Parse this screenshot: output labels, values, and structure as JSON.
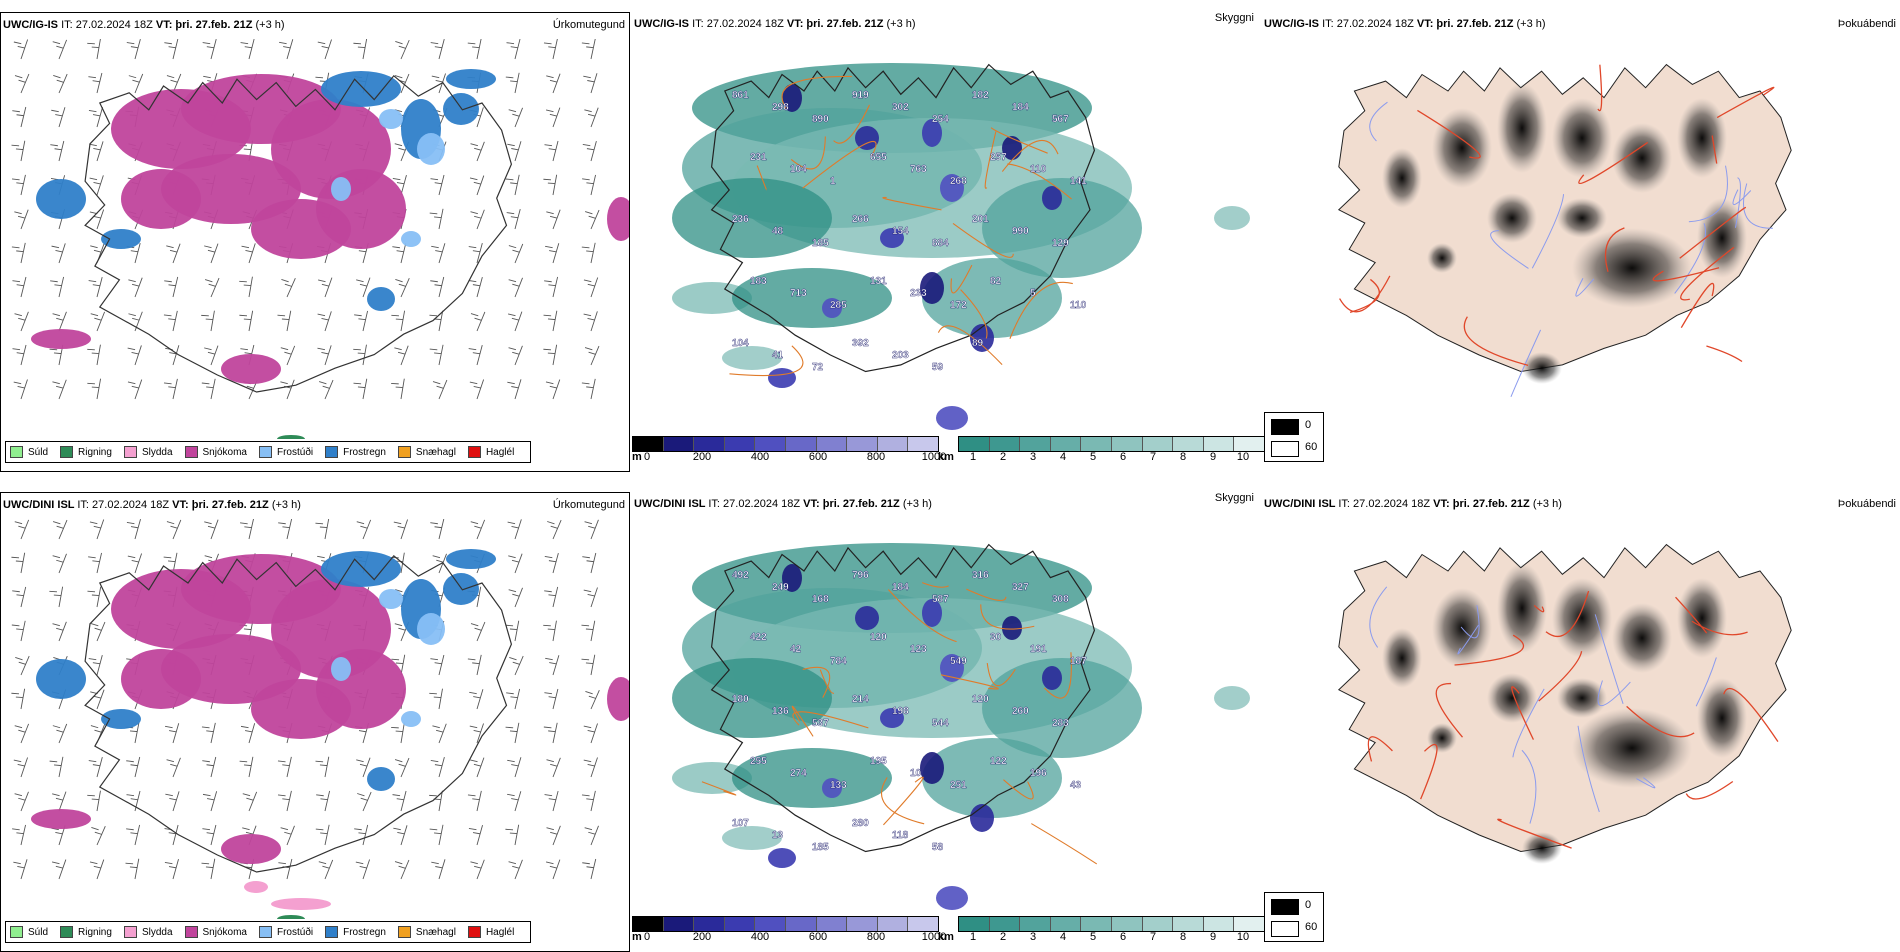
{
  "rows": [
    {
      "model": "UWC/IG-IS",
      "it_label": "IT:",
      "it_value": "27.02.2024 18Z",
      "vt_label": "VT:",
      "vt_value": "þri. 27.feb. 21Z",
      "lead": "(+3 h)",
      "titles": [
        "Úrkomutegund",
        "Skyggni",
        "Þokuábendi"
      ],
      "visibility_labels": [
        "861",
        "298",
        "890",
        "919",
        "302",
        "254",
        "182",
        "184",
        "567",
        "231",
        "104",
        "1",
        "655",
        "763",
        "268",
        "257",
        "110",
        "141",
        "236",
        "48",
        "185",
        "266",
        "154",
        "884",
        "201",
        "990",
        "129",
        "183",
        "713",
        "285",
        "131",
        "233",
        "172",
        "82",
        "5",
        "110",
        "104",
        "41",
        "72",
        "392",
        "203",
        "59",
        "89"
      ]
    },
    {
      "model": "UWC/DINI ISL",
      "it_label": "IT:",
      "it_value": "27.02.2024 18Z",
      "vt_label": "VT:",
      "vt_value": "þri. 27.feb. 21Z",
      "lead": "(+3 h)",
      "titles": [
        "Úrkomutegund",
        "Skyggni",
        "Þokuábendi"
      ],
      "visibility_labels": [
        "492",
        "249",
        "168",
        "796",
        "184",
        "587",
        "316",
        "327",
        "308",
        "422",
        "42",
        "784",
        "120",
        "123",
        "549",
        "30",
        "191",
        "187",
        "180",
        "136",
        "537",
        "214",
        "198",
        "544",
        "120",
        "260",
        "283",
        "255",
        "274",
        "133",
        "195",
        "10",
        "251",
        "122",
        "196",
        "43",
        "107",
        "13",
        "185",
        "280",
        "118",
        "58"
      ]
    }
  ],
  "precip_legend": [
    {
      "label": "Súld",
      "color": "#90ee90"
    },
    {
      "label": "Rigning",
      "color": "#2e8b57"
    },
    {
      "label": "Slydda",
      "color": "#f4a0d0"
    },
    {
      "label": "Snjókoma",
      "color": "#c0449c"
    },
    {
      "label": "Frostúði",
      "color": "#87bff5"
    },
    {
      "label": "Frostregn",
      "color": "#2f7fc9"
    },
    {
      "label": "Snæhagl",
      "color": "#f0a020"
    },
    {
      "label": "Haglél",
      "color": "#e01010"
    }
  ],
  "visibility_scale": {
    "m_unit": "m",
    "m_ticks": [
      "0",
      "200",
      "400",
      "600",
      "800",
      "1000"
    ],
    "m_colors": [
      "#000000",
      "#1a1a7a",
      "#2a2a9a",
      "#3b3bb0",
      "#5050c0",
      "#6868c8",
      "#8080d0",
      "#9898d8",
      "#b0b0e0",
      "#c8c8ec"
    ],
    "km_unit": "km",
    "km_ticks": [
      "1",
      "2",
      "3",
      "4",
      "5",
      "6",
      "7",
      "8",
      "9",
      "10"
    ],
    "km_colors": [
      "#2f8f84",
      "#3e9890",
      "#52a39c",
      "#66aea8",
      "#7ab9b3",
      "#8fc4bf",
      "#a3cfcb",
      "#b8dad7",
      "#cce5e3",
      "#e2f0ef"
    ]
  },
  "fog_legend": [
    {
      "label": "0",
      "color": "#000000"
    },
    {
      "label": "60",
      "color": "#ffffff"
    }
  ]
}
